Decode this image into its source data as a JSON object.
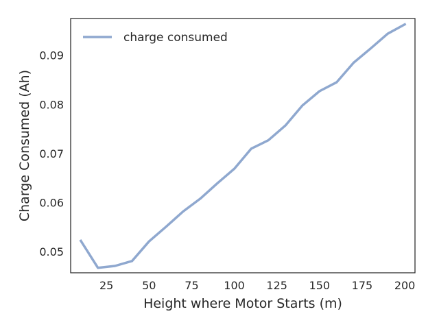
{
  "chart_data": {
    "type": "line",
    "title": "",
    "xlabel": "Height where Motor Starts (m)",
    "ylabel": "Charge Consumed (Ah)",
    "xlim": [
      4,
      206
    ],
    "ylim": [
      0.0457,
      0.0975
    ],
    "xticks": [
      25,
      50,
      75,
      100,
      125,
      150,
      175,
      200
    ],
    "yticks": [
      0.05,
      0.06,
      0.07,
      0.08,
      0.09
    ],
    "xtick_labels": [
      "25",
      "50",
      "75",
      "100",
      "125",
      "150",
      "175",
      "200"
    ],
    "ytick_labels": [
      "0.05",
      "0.06",
      "0.07",
      "0.08",
      "0.09"
    ],
    "grid": false,
    "legend": "upper-left",
    "series": [
      {
        "name": "charge consumed",
        "color": "#8fa8cf",
        "x": [
          10,
          20,
          30,
          40,
          50,
          60,
          70,
          80,
          90,
          100,
          110,
          120,
          130,
          140,
          150,
          160,
          170,
          180,
          190,
          200
        ],
        "y": [
          0.0522,
          0.0467,
          0.0471,
          0.0481,
          0.0521,
          0.0551,
          0.0582,
          0.0608,
          0.0639,
          0.0669,
          0.071,
          0.0727,
          0.0757,
          0.0798,
          0.0827,
          0.0845,
          0.0885,
          0.0914,
          0.0944,
          0.0963
        ]
      }
    ]
  }
}
